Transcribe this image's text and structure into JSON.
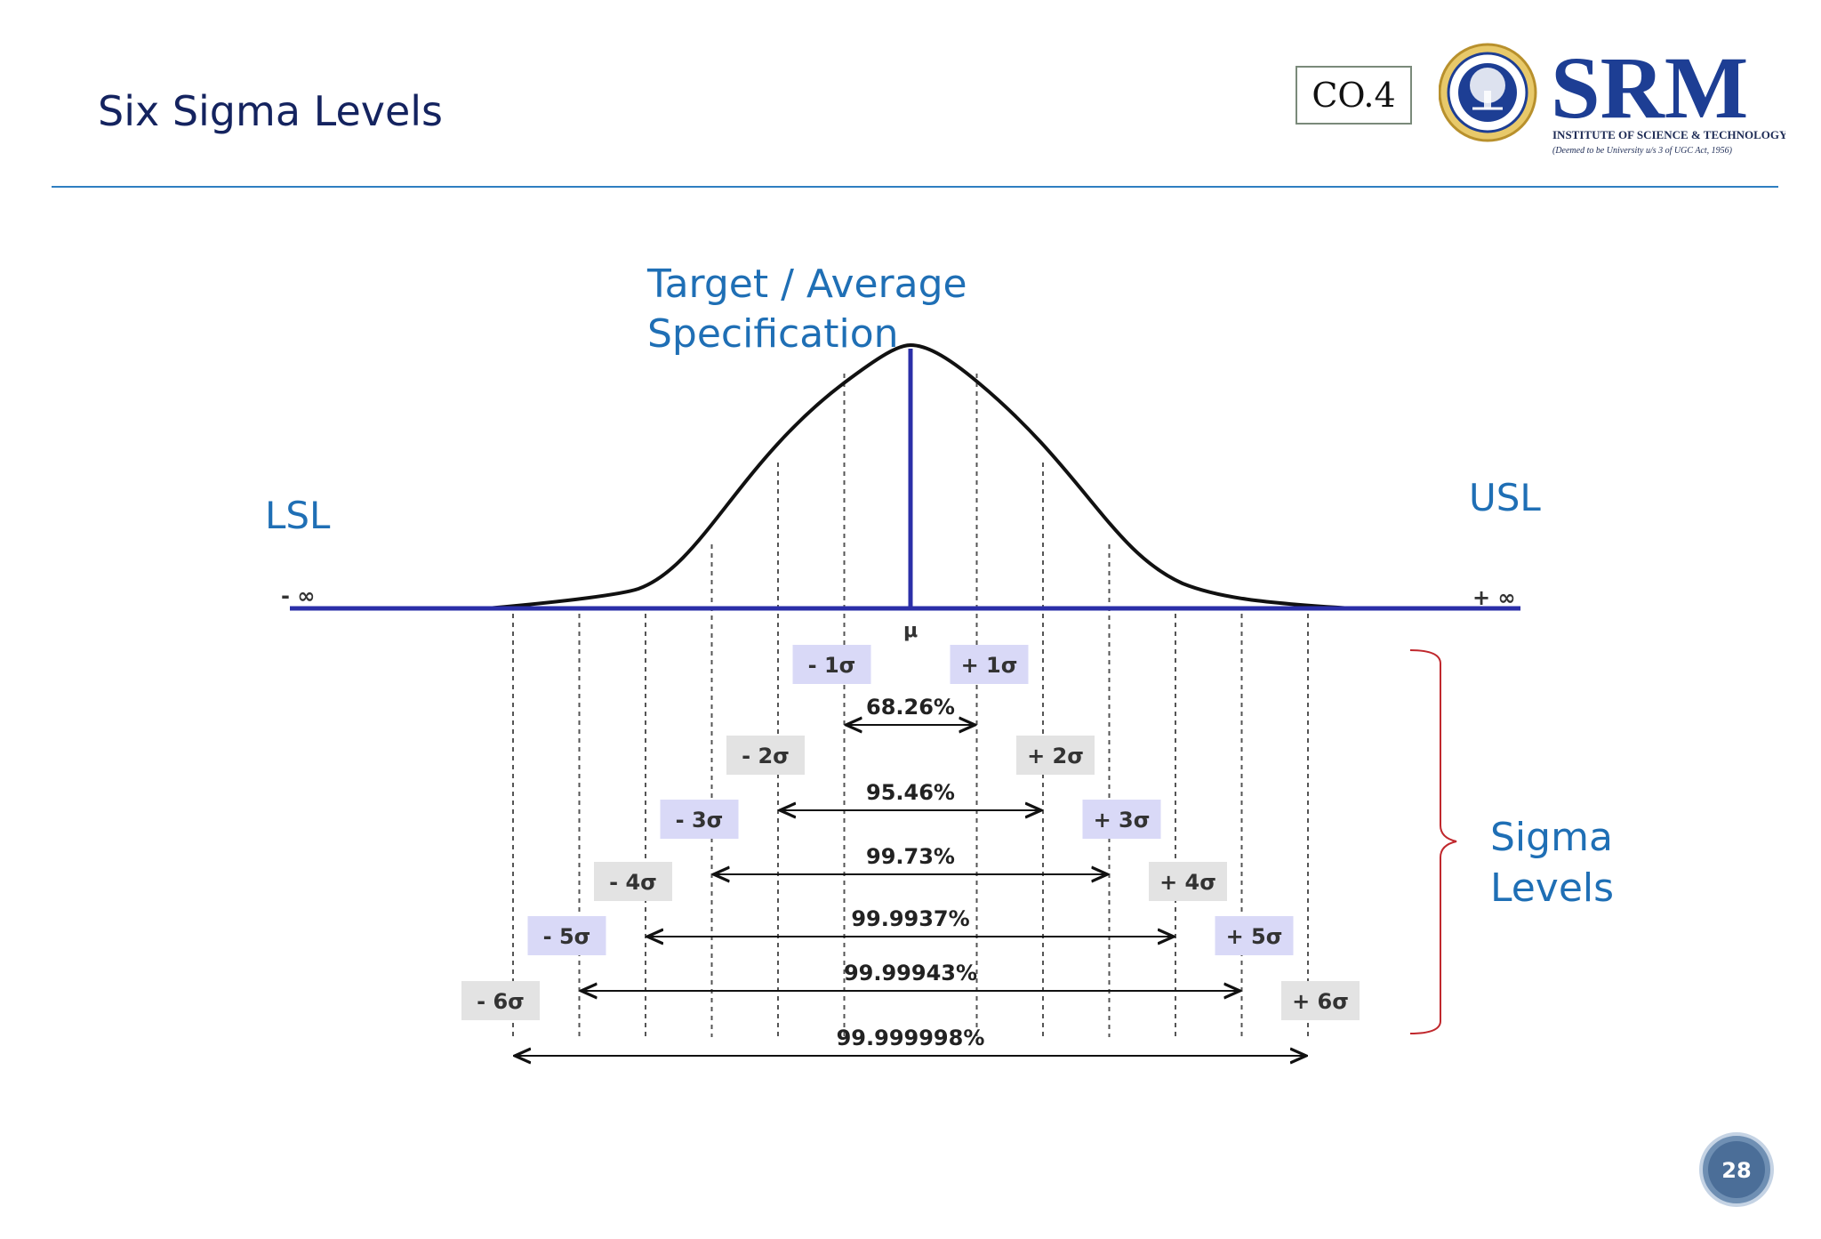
{
  "slide": {
    "title": "Six Sigma Levels",
    "co_label": "CO.4",
    "page_number": "28"
  },
  "logo": {
    "wordmark": "SRM",
    "line1": "INSTITUTE OF SCIENCE & TECHNOLOGY",
    "line2": "(Deemed to be University u/s 3 of UGC Act, 1956)",
    "seal_text": "SRM INSTITUTE OF SCIENCE AND TECHNOLOGY"
  },
  "diagram": {
    "target_label_line1": "Target / Average",
    "target_label_line2": "Specification",
    "lsl": "LSL",
    "usl": "USL",
    "neg_inf": "- ∞",
    "pos_inf": "+ ∞",
    "mu": "μ",
    "sigma_levels_line1": "Sigma",
    "sigma_levels_line2": "Levels",
    "levels": [
      {
        "neg": "- 1σ",
        "pos": "+ 1σ",
        "pct": "68.26%",
        "shade": "blue"
      },
      {
        "neg": "- 2σ",
        "pos": "+ 2σ",
        "pct": "95.46%",
        "shade": "gray"
      },
      {
        "neg": "- 3σ",
        "pos": "+ 3σ",
        "pct": "99.73%",
        "shade": "blue"
      },
      {
        "neg": "- 4σ",
        "pos": "+ 4σ",
        "pct": "99.9937%",
        "shade": "gray"
      },
      {
        "neg": "- 5σ",
        "pos": "+ 5σ",
        "pct": "99.99943%",
        "shade": "blue"
      },
      {
        "neg": "- 6σ",
        "pos": "+ 6σ",
        "pct": "99.999998%",
        "shade": "gray"
      }
    ]
  },
  "colors": {
    "title": "#14235f",
    "accent_blue": "#1f6fb5",
    "axis": "#2b2fa8",
    "brace": "#c0282d",
    "tag_blue": "#d9d9f7",
    "tag_gray": "#e3e3e3",
    "srm_blue": "#1d3e94"
  }
}
